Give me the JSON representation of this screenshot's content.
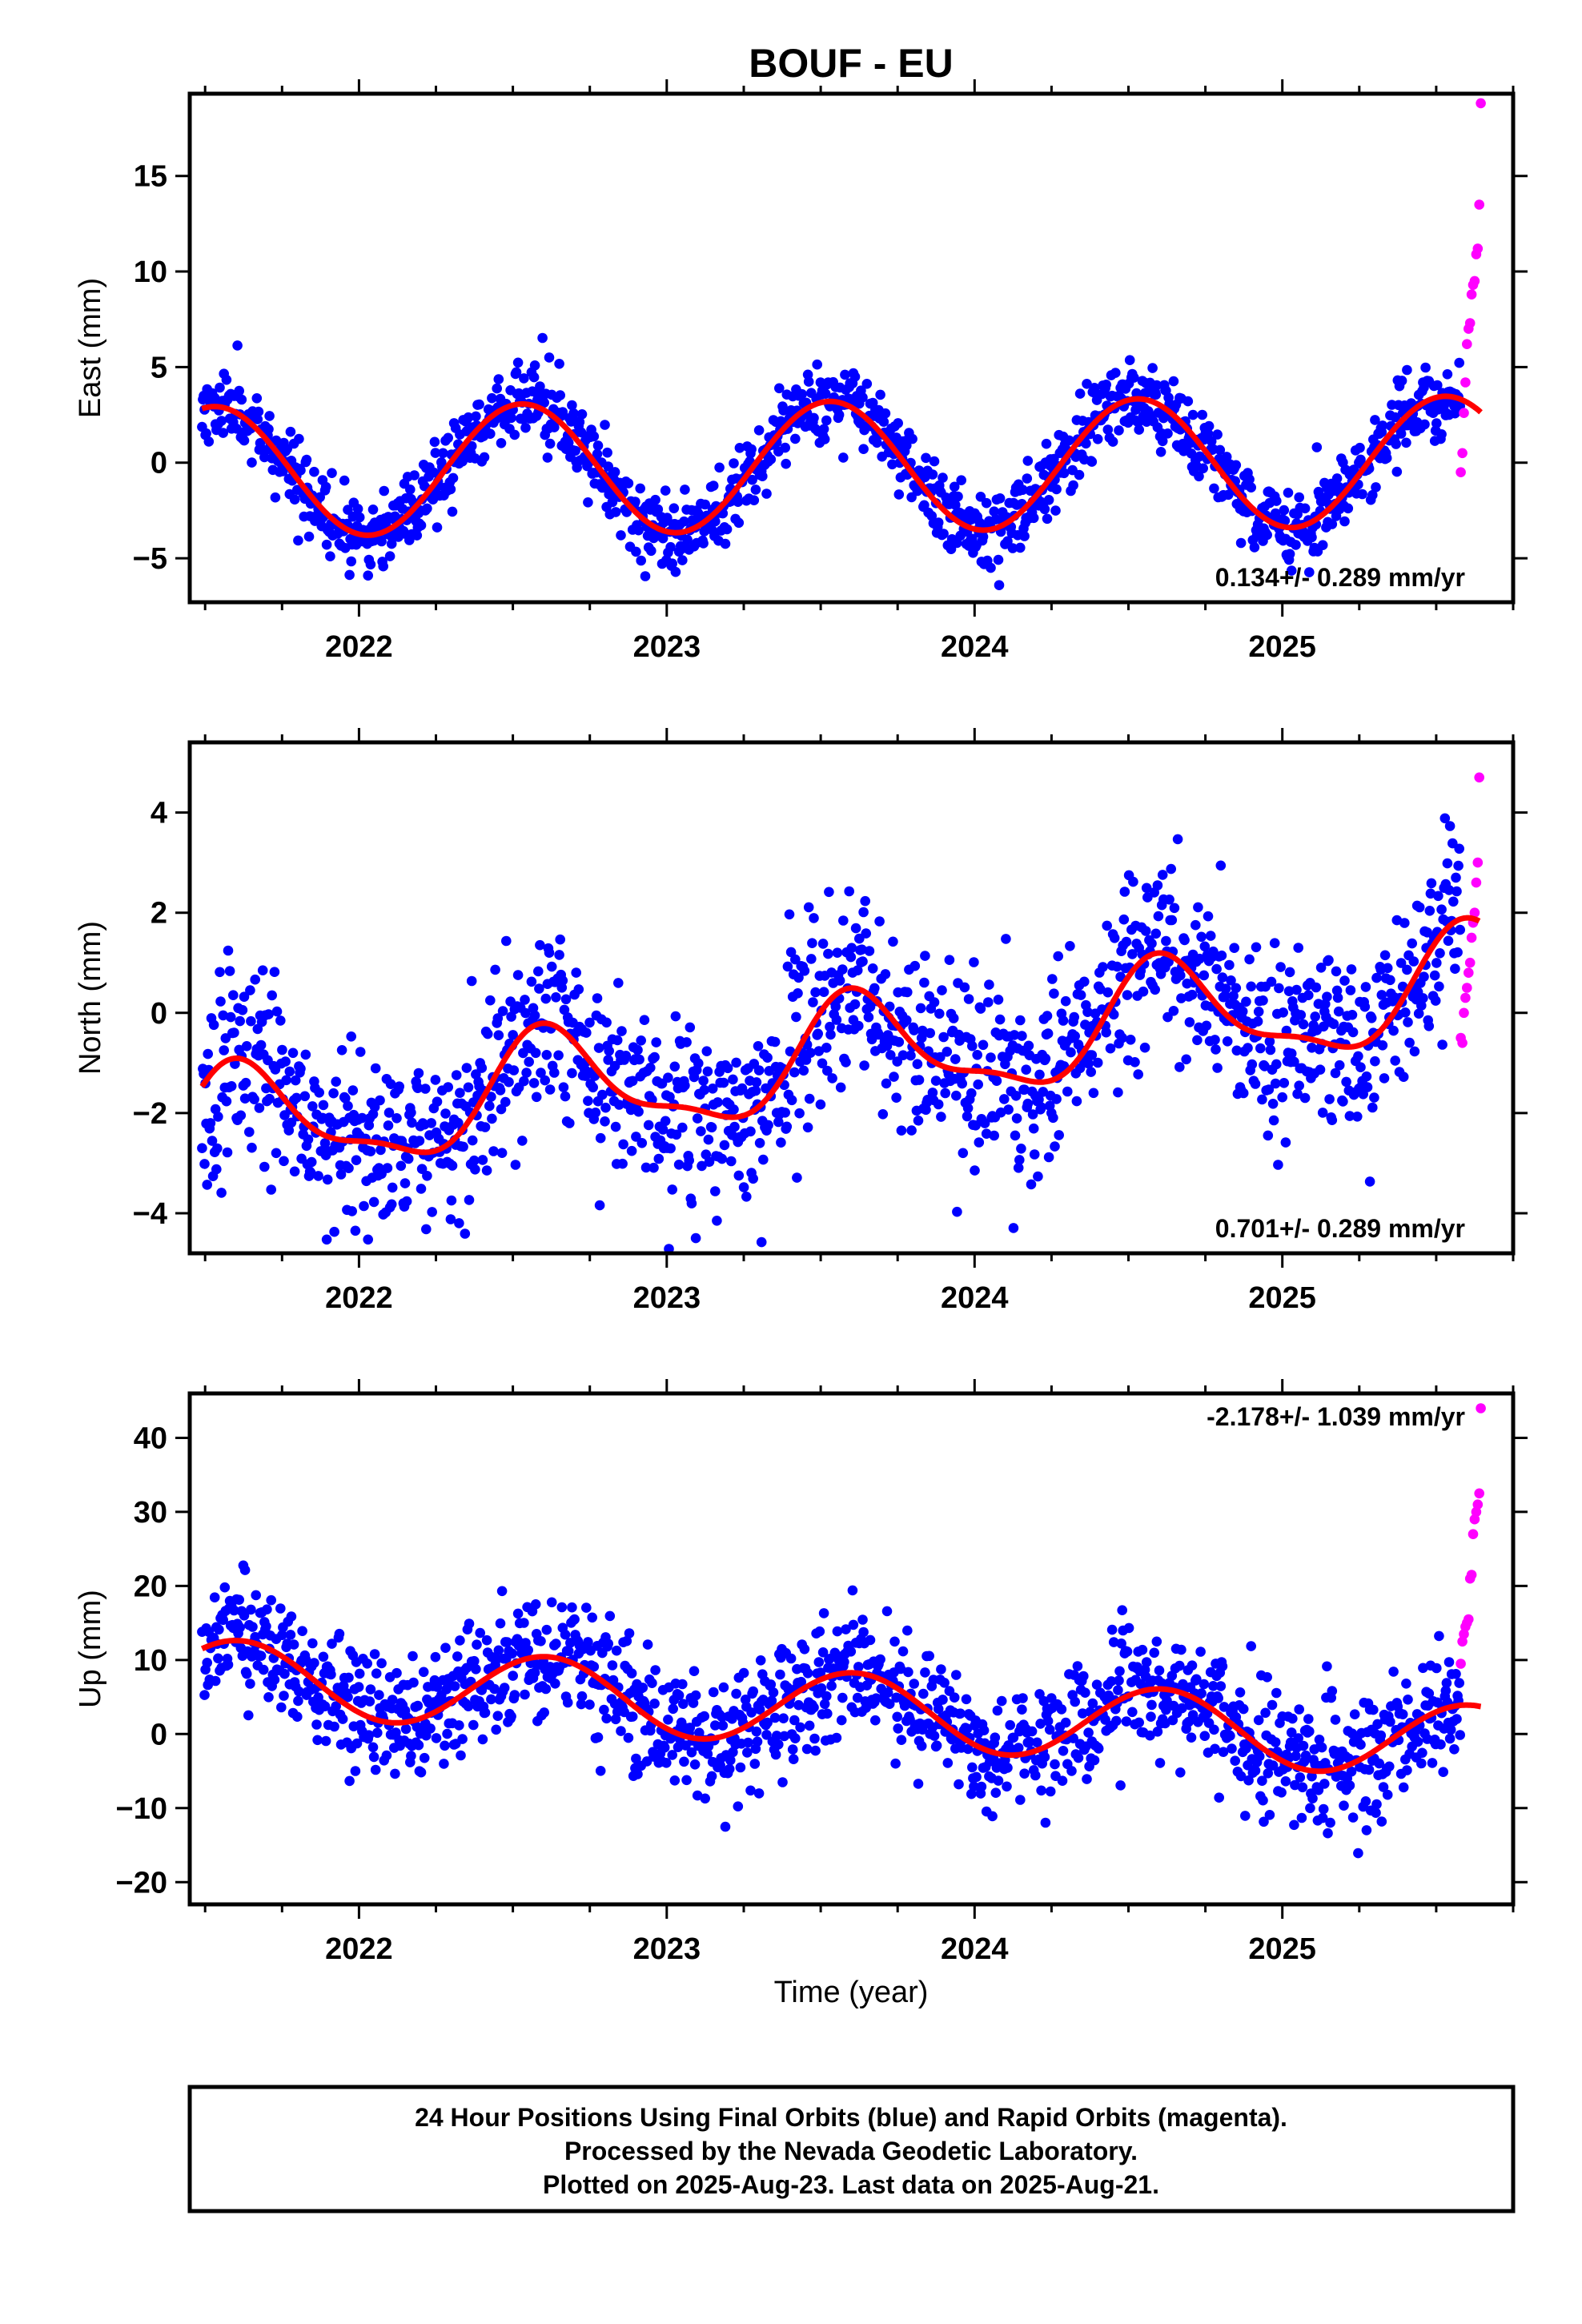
{
  "title": "BOUF - EU",
  "x_axis_label": "Time (year)",
  "footer": {
    "line1": "24 Hour Positions Using Final Orbits (blue) and Rapid Orbits (magenta).",
    "line2": "Processed by the Nevada Geodetic Laboratory.",
    "line3": "Plotted on 2025-Aug-23. Last data on 2025-Aug-21."
  },
  "colors": {
    "final": "#0000ff",
    "rapid": "#ff00ff",
    "model": "#ff0000",
    "axis": "#000000"
  },
  "chart_data": [
    {
      "type": "scatter",
      "panel": "east",
      "ylabel": "East (mm)",
      "rate_label": "0.134+/- 0.289 mm/yr",
      "rate_label_position": "bottom-right",
      "xlim": [
        2021.45,
        2025.75
      ],
      "ylim": [
        -7.3,
        19.3
      ],
      "xticks": [
        2022,
        2023,
        2024,
        2025
      ],
      "xtick_labels": [
        "2022",
        "2023",
        "2024",
        "2025"
      ],
      "yticks": [
        -5,
        0,
        5,
        10,
        15
      ],
      "ytick_labels": [
        "−5",
        "0",
        "5",
        "10",
        "15"
      ],
      "model": {
        "offset": -0.2,
        "rate": 0.134,
        "annual_amp": 3.4,
        "annual_phase": 2021.28,
        "semi_amp": 0.0,
        "semi_phase": 2021.5
      },
      "noise_sd": 1.0,
      "final_orbits": {
        "start": 2021.49,
        "end": 2025.58,
        "seed": 11
      },
      "rapid_orbits": {
        "x": [
          2025.58,
          2025.585,
          2025.59,
          2025.595,
          2025.6,
          2025.605,
          2025.61,
          2025.615,
          2025.62,
          2025.625,
          2025.63,
          2025.635,
          2025.64,
          2025.645
        ],
        "y": [
          -0.5,
          0.5,
          2.6,
          4.2,
          6.2,
          7.0,
          7.3,
          8.8,
          9.3,
          9.5,
          10.9,
          11.2,
          13.5,
          18.8
        ]
      }
    },
    {
      "type": "scatter",
      "panel": "north",
      "ylabel": "North (mm)",
      "rate_label": "0.701+/- 0.289 mm/yr",
      "rate_label_position": "bottom-right",
      "xlim": [
        2021.45,
        2025.75
      ],
      "ylim": [
        -4.8,
        5.4
      ],
      "xticks": [
        2022,
        2023,
        2024,
        2025
      ],
      "xtick_labels": [
        "2022",
        "2023",
        "2024",
        "2025"
      ],
      "yticks": [
        -4,
        -2,
        0,
        2,
        4
      ],
      "ytick_labels": [
        "−4",
        "−2",
        "0",
        "2",
        "4"
      ],
      "model": {
        "offset": -0.95,
        "rate": 0.701,
        "annual_amp": 1.05,
        "annual_phase": 2021.37,
        "semi_amp": 0.35,
        "semi_phase": 2021.45
      },
      "noise_sd": 0.95,
      "final_orbits": {
        "start": 2021.49,
        "end": 2025.58,
        "seed": 23
      },
      "rapid_orbits": {
        "x": [
          2025.58,
          2025.585,
          2025.59,
          2025.595,
          2025.6,
          2025.605,
          2025.61,
          2025.615,
          2025.62,
          2025.625,
          2025.63,
          2025.635,
          2025.64
        ],
        "y": [
          -0.5,
          -0.6,
          0.0,
          0.3,
          0.5,
          0.8,
          1.0,
          1.5,
          1.8,
          2.0,
          2.6,
          3.0,
          4.7
        ]
      }
    },
    {
      "type": "scatter",
      "panel": "up",
      "ylabel": "Up (mm)",
      "rate_label": "-2.178+/- 1.039 mm/yr",
      "rate_label_position": "top-right",
      "xlim": [
        2021.45,
        2025.75
      ],
      "ylim": [
        -23,
        46
      ],
      "xticks": [
        2022,
        2023,
        2024,
        2025
      ],
      "xtick_labels": [
        "2022",
        "2023",
        "2024",
        "2025"
      ],
      "yticks": [
        -20,
        -10,
        0,
        10,
        20,
        30,
        40
      ],
      "ytick_labels": [
        "−20",
        "−10",
        "0",
        "10",
        "20",
        "30",
        "40"
      ],
      "model": {
        "offset": 3.5,
        "rate": -2.178,
        "annual_amp": 5.0,
        "annual_phase": 2021.36,
        "semi_amp": 0.0,
        "semi_phase": 2021.5
      },
      "noise_sd": 4.2,
      "final_orbits": {
        "start": 2021.49,
        "end": 2025.58,
        "seed": 37
      },
      "rapid_orbits": {
        "x": [
          2025.58,
          2025.585,
          2025.59,
          2025.595,
          2025.6,
          2025.605,
          2025.61,
          2025.615,
          2025.62,
          2025.625,
          2025.63,
          2025.635,
          2025.64,
          2025.645
        ],
        "y": [
          9.5,
          12.5,
          13.5,
          14.5,
          15.0,
          15.5,
          21.0,
          21.5,
          27.0,
          29.0,
          30.0,
          31.0,
          32.5,
          44.0
        ]
      }
    }
  ]
}
